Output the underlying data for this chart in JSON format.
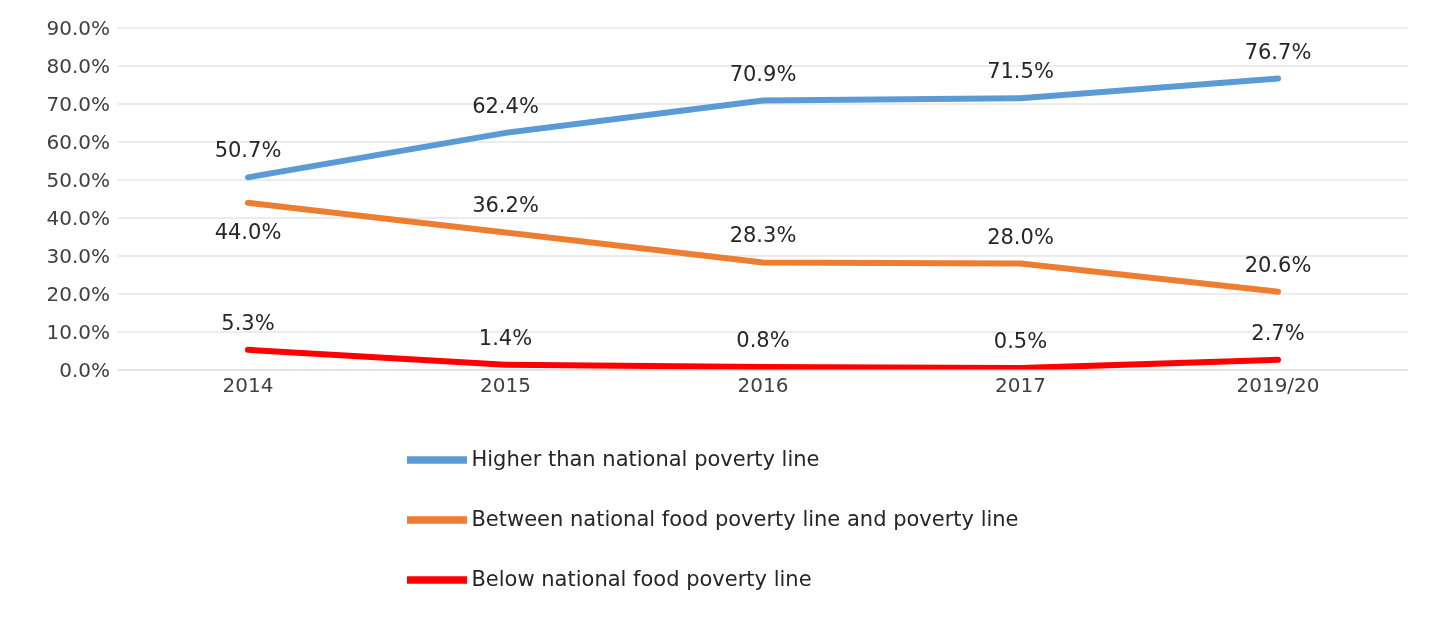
{
  "chart_data": {
    "type": "line",
    "categories": [
      "2014",
      "2015",
      "2016",
      "2017",
      "2019/20"
    ],
    "series": [
      {
        "name": "Higher than national poverty line",
        "color": "#5b9bd5",
        "values": [
          50.7,
          62.4,
          70.9,
          71.5,
          76.7
        ],
        "value_labels": [
          "50.7%",
          "62.4%",
          "70.9%",
          "71.5%",
          "76.7%"
        ]
      },
      {
        "name": "Between national food poverty line and poverty line",
        "color": "#ed7d31",
        "values": [
          44.0,
          36.2,
          28.3,
          28.0,
          20.6
        ],
        "value_labels": [
          "44.0%",
          "36.2%",
          "28.3%",
          "28.0%",
          "20.6%"
        ]
      },
      {
        "name": "Below national food poverty line",
        "color": "#ff0000",
        "values": [
          5.3,
          1.4,
          0.8,
          0.5,
          2.7
        ],
        "value_labels": [
          "5.3%",
          "1.4%",
          "0.8%",
          "0.5%",
          "2.7%"
        ]
      }
    ],
    "ylim": [
      0,
      90
    ],
    "yticks": [
      {
        "value": 0,
        "label": "0.0%"
      },
      {
        "value": 10,
        "label": "10.0%"
      },
      {
        "value": 20,
        "label": "20.0%"
      },
      {
        "value": 30,
        "label": "30.0%"
      },
      {
        "value": 40,
        "label": "40.0%"
      },
      {
        "value": 50,
        "label": "50.0%"
      },
      {
        "value": 60,
        "label": "60.0%"
      },
      {
        "value": 70,
        "label": "70.0%"
      },
      {
        "value": 80,
        "label": "80.0%"
      },
      {
        "value": 90,
        "label": "90.0%"
      }
    ],
    "grid": "y",
    "legend": "bottom",
    "marker": "none",
    "line_style": "solid"
  }
}
